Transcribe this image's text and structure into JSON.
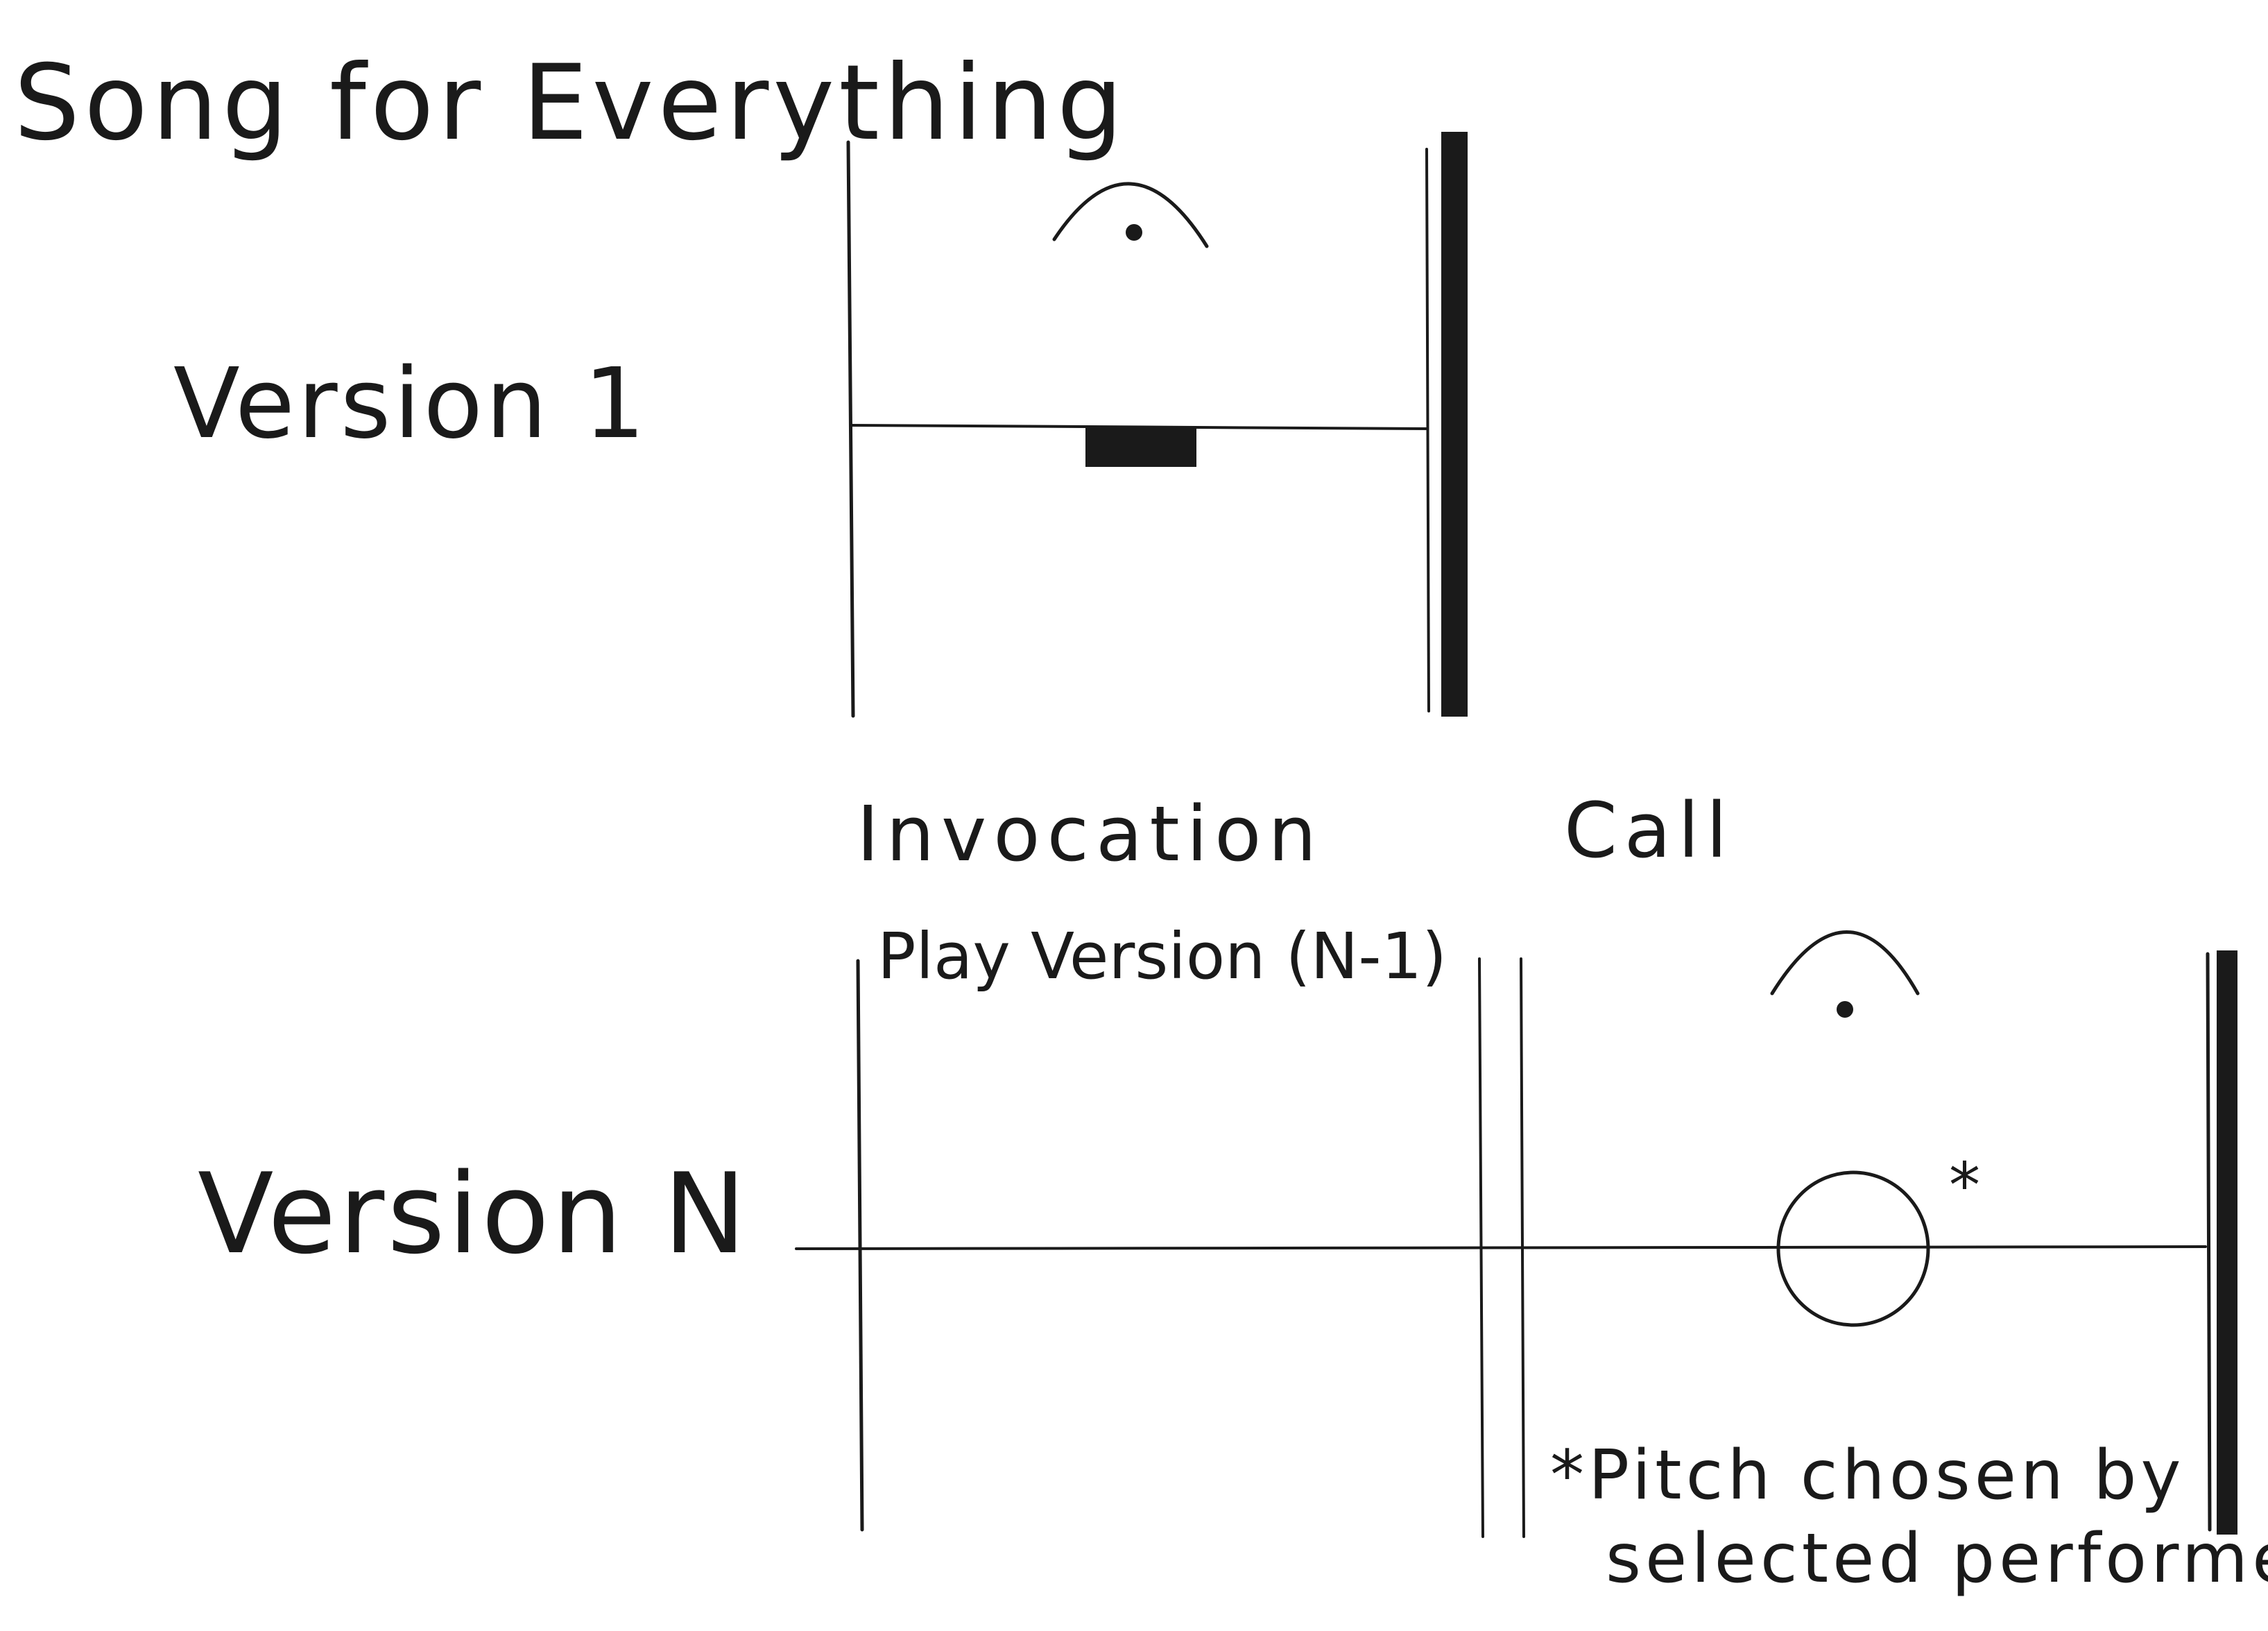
{
  "title": "Song for Everything",
  "version_1": {
    "label": "Version 1"
  },
  "version_n": {
    "label": "Version N",
    "section_labels": [
      "Invocation",
      "Call"
    ],
    "instruction": "Play Version (N-1)",
    "footnote_marker": "*",
    "footnote_line_1": "*Pitch chosen by",
    "footnote_line_2": "selected performer"
  }
}
